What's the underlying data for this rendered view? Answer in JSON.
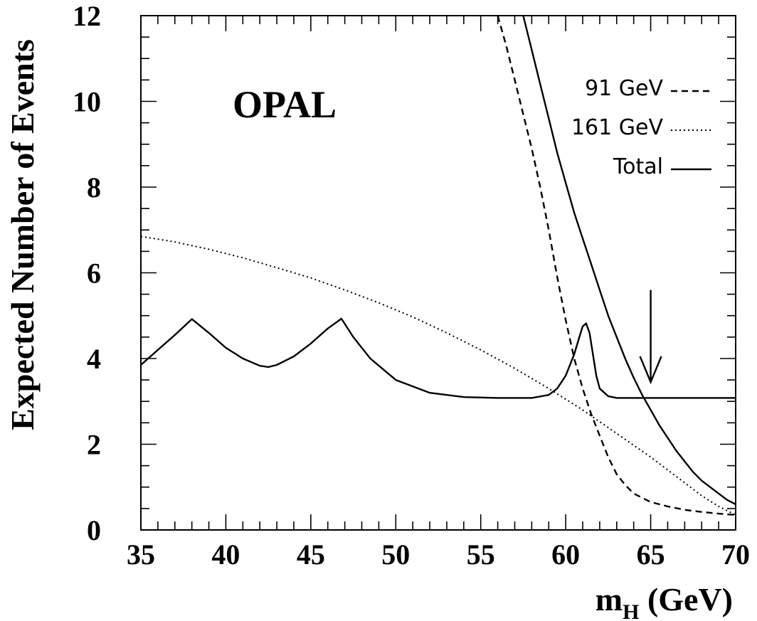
{
  "chart_data": {
    "type": "line",
    "title": "",
    "annotation": "OPAL",
    "xlabel": "m",
    "xlabel_sub": "H",
    "xlabel_unit": " (GeV)",
    "ylabel": "Expected Number of Events",
    "xlim": [
      35,
      70
    ],
    "ylim": [
      0,
      12
    ],
    "x_ticks": [
      35,
      40,
      45,
      50,
      55,
      60,
      65,
      70
    ],
    "y_ticks": [
      0,
      2,
      4,
      6,
      8,
      10,
      12
    ],
    "arrow_at": 65,
    "legend_position": "top-right",
    "series": [
      {
        "name": "91 GeV",
        "style": "dashed",
        "color": "#000000",
        "x": [
          56.0,
          56.5,
          57.0,
          57.5,
          58.0,
          58.5,
          59.0,
          59.5,
          60.0,
          60.5,
          61.0,
          61.5,
          62.0,
          62.5,
          63.0,
          63.5,
          64.0,
          65.0,
          66.0,
          67.0,
          68.0,
          69.0,
          70.0
        ],
        "y": [
          12.0,
          11.3,
          10.5,
          9.7,
          8.9,
          8.0,
          7.0,
          5.9,
          4.9,
          4.0,
          3.3,
          2.7,
          2.2,
          1.7,
          1.3,
          1.05,
          0.85,
          0.65,
          0.55,
          0.47,
          0.42,
          0.38,
          0.35
        ]
      },
      {
        "name": "161 GeV",
        "style": "dotted",
        "color": "#000000",
        "x": [
          35,
          37,
          39,
          41,
          43,
          45,
          47,
          49,
          51,
          53,
          55,
          57,
          59,
          61,
          63,
          65,
          67,
          68,
          69,
          70
        ],
        "y": [
          6.85,
          6.72,
          6.55,
          6.35,
          6.12,
          5.88,
          5.6,
          5.3,
          4.97,
          4.6,
          4.2,
          3.77,
          3.3,
          2.8,
          2.25,
          1.7,
          1.1,
          0.8,
          0.55,
          0.35
        ]
      },
      {
        "name": "Total",
        "style": "solid",
        "color": "#000000",
        "x": [
          57.5,
          58.0,
          58.5,
          59.0,
          59.5,
          60.0,
          60.5,
          61.0,
          61.5,
          62.0,
          62.5,
          63.0,
          63.5,
          64.0,
          64.5,
          65.0,
          65.5,
          66.0,
          66.5,
          67.0,
          67.5,
          68.0,
          68.5,
          69.0,
          69.5,
          70.0
        ],
        "y": [
          12.0,
          11.2,
          10.4,
          9.6,
          8.8,
          8.1,
          7.4,
          6.8,
          6.2,
          5.6,
          5.0,
          4.5,
          4.0,
          3.55,
          3.15,
          2.8,
          2.45,
          2.15,
          1.85,
          1.6,
          1.35,
          1.15,
          1.0,
          0.85,
          0.7,
          0.6
        ]
      },
      {
        "name": "",
        "style": "solid",
        "color": "#000000",
        "x": [
          35.0,
          36.0,
          37.0,
          38.0,
          39.0,
          40.0,
          41.0,
          42.0,
          42.5,
          43.0,
          44.0,
          45.0,
          46.0,
          46.8,
          47.5,
          48.5,
          50.0,
          52.0,
          54.0,
          56.0,
          58.0,
          59.0,
          59.5,
          60.0,
          60.5,
          60.8,
          61.0,
          61.2,
          61.4,
          61.6,
          61.8,
          62.0,
          62.5,
          63.0,
          64.0,
          66.0,
          68.0,
          70.0
        ],
        "y": [
          3.85,
          4.2,
          4.55,
          4.92,
          4.6,
          4.25,
          4.0,
          3.83,
          3.8,
          3.85,
          4.05,
          4.35,
          4.7,
          4.93,
          4.5,
          4.0,
          3.5,
          3.2,
          3.1,
          3.08,
          3.08,
          3.15,
          3.3,
          3.6,
          4.1,
          4.5,
          4.75,
          4.82,
          4.6,
          4.1,
          3.6,
          3.3,
          3.12,
          3.08,
          3.08,
          3.08,
          3.08,
          3.08
        ]
      }
    ]
  }
}
